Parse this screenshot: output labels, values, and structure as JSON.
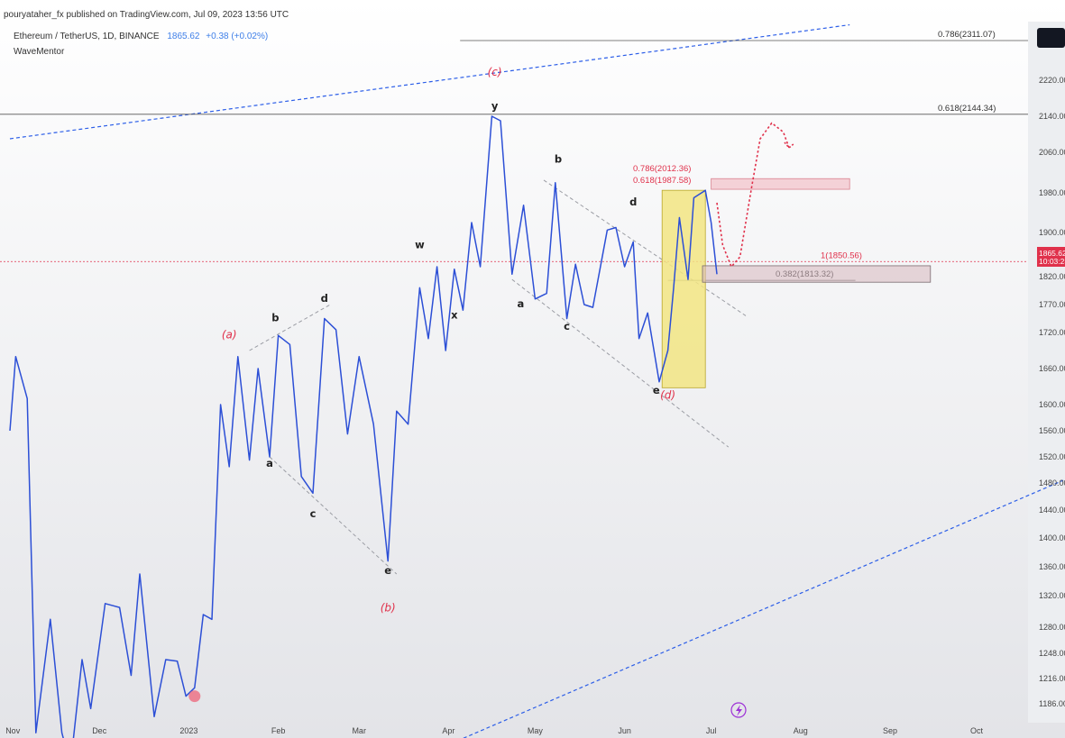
{
  "header": {
    "published": "pouryataher_fx published on TradingView.com, Jul 09, 2023 13:56 UTC",
    "symbol": "Ethereum / TetherUS, 1D, BINANCE",
    "price": "1865.62",
    "change": "+0.38 (+0.02%)",
    "indicator": "WaveMentor"
  },
  "colors": {
    "price_line": "#2c4fd6",
    "wave_red": "#e0314b",
    "channel": "#2c5ee8",
    "highlight": "#f2e583",
    "price_badge": "#e0314b",
    "lightning": "#9c2fd6"
  },
  "icons": {
    "lightning": "lightning-icon"
  },
  "chart_data": {
    "type": "line",
    "title": "Ethereum / TetherUS, 1D, BINANCE",
    "x_axis": {
      "tick_labels": [
        "Nov",
        "Dec",
        "2023",
        "Feb",
        "Mar",
        "Apr",
        "May",
        "Jun",
        "Jul",
        "Aug",
        "Sep",
        "Oct"
      ],
      "tick_dates": [
        "2022-11-01",
        "2022-12-01",
        "2023-01-01",
        "2023-02-01",
        "2023-03-01",
        "2023-04-01",
        "2023-05-01",
        "2023-06-01",
        "2023-07-01",
        "2023-08-01",
        "2023-09-01",
        "2023-10-01"
      ]
    },
    "y_axis": {
      "tick_labels": [
        "2220.00",
        "2140.00",
        "2060.00",
        "1980.00",
        "1900.00",
        "1820.00",
        "1770.00",
        "1720.00",
        "1660.00",
        "1600.00",
        "1560.00",
        "1520.00",
        "1480.00",
        "1440.00",
        "1400.00",
        "1360.00",
        "1320.00",
        "1280.00",
        "1248.00",
        "1216.00",
        "1186.00"
      ],
      "tick_values": [
        2220,
        2140,
        2060,
        1980,
        1900,
        1820,
        1770,
        1720,
        1660,
        1600,
        1560,
        1520,
        1480,
        1440,
        1400,
        1360,
        1320,
        1280,
        1248,
        1216,
        1186
      ],
      "position": "right"
    },
    "price_badge": {
      "price": "1865.62",
      "countdown": "10:03:23"
    },
    "series": [
      {
        "color": "#2c4fd6",
        "points": [
          [
            "2022-10-31",
            1560
          ],
          [
            "2022-11-02",
            1680
          ],
          [
            "2022-11-06",
            1610
          ],
          [
            "2022-11-09",
            1150
          ],
          [
            "2022-11-14",
            1290
          ],
          [
            "2022-11-18",
            1150
          ],
          [
            "2022-11-21",
            1110
          ],
          [
            "2022-11-25",
            1240
          ],
          [
            "2022-11-28",
            1180
          ],
          [
            "2022-12-03",
            1310
          ],
          [
            "2022-12-08",
            1305
          ],
          [
            "2022-12-12",
            1220
          ],
          [
            "2022-12-15",
            1350
          ],
          [
            "2022-12-20",
            1170
          ],
          [
            "2022-12-24",
            1240
          ],
          [
            "2022-12-28",
            1238
          ],
          [
            "2022-12-31",
            1195
          ],
          [
            "2023-01-03",
            1205
          ],
          [
            "2023-01-06",
            1296
          ],
          [
            "2023-01-09",
            1290
          ],
          [
            "2023-01-12",
            1600
          ],
          [
            "2023-01-15",
            1505
          ],
          [
            "2023-01-18",
            1680
          ],
          [
            "2023-01-22",
            1515
          ],
          [
            "2023-01-25",
            1660
          ],
          [
            "2023-01-29",
            1520
          ],
          [
            "2023-02-01",
            1715
          ],
          [
            "2023-02-05",
            1700
          ],
          [
            "2023-02-09",
            1490
          ],
          [
            "2023-02-13",
            1465
          ],
          [
            "2023-02-17",
            1745
          ],
          [
            "2023-02-21",
            1725
          ],
          [
            "2023-02-25",
            1555
          ],
          [
            "2023-03-01",
            1680
          ],
          [
            "2023-03-06",
            1570
          ],
          [
            "2023-03-11",
            1368
          ],
          [
            "2023-03-14",
            1590
          ],
          [
            "2023-03-18",
            1570
          ],
          [
            "2023-03-22",
            1800
          ],
          [
            "2023-03-25",
            1710
          ],
          [
            "2023-03-28",
            1840
          ],
          [
            "2023-03-31",
            1690
          ],
          [
            "2023-04-03",
            1835
          ],
          [
            "2023-04-06",
            1760
          ],
          [
            "2023-04-09",
            1920
          ],
          [
            "2023-04-12",
            1840
          ],
          [
            "2023-04-16",
            2140
          ],
          [
            "2023-04-19",
            2130
          ],
          [
            "2023-04-23",
            1825
          ],
          [
            "2023-04-27",
            1955
          ],
          [
            "2023-05-01",
            1780
          ],
          [
            "2023-05-05",
            1790
          ],
          [
            "2023-05-08",
            2000
          ],
          [
            "2023-05-12",
            1745
          ],
          [
            "2023-05-15",
            1845
          ],
          [
            "2023-05-18",
            1770
          ],
          [
            "2023-05-21",
            1765
          ],
          [
            "2023-05-26",
            1905
          ],
          [
            "2023-05-29",
            1910
          ],
          [
            "2023-06-01",
            1840
          ],
          [
            "2023-06-04",
            1885
          ],
          [
            "2023-06-06",
            1710
          ],
          [
            "2023-06-09",
            1755
          ],
          [
            "2023-06-13",
            1638
          ],
          [
            "2023-06-16",
            1690
          ],
          [
            "2023-06-18",
            1800
          ],
          [
            "2023-06-20",
            1930
          ],
          [
            "2023-06-23",
            1815
          ],
          [
            "2023-06-25",
            1970
          ],
          [
            "2023-06-29",
            1985
          ],
          [
            "2023-07-01",
            1920
          ],
          [
            "2023-07-03",
            1825
          ]
        ]
      }
    ],
    "horizontal_levels": [
      {
        "label": "0.786(2311.07)",
        "value": 2311.07
      },
      {
        "label": "0.618(2144.34)",
        "value": 2144.34
      },
      {
        "label": "1(1850.56)",
        "value": 1850.56
      },
      {
        "label": "0.382(1813.32)",
        "value": 1813.32
      }
    ],
    "red_levels": [
      "0.786(2012.36)",
      "0.618(1987.58)"
    ],
    "wave_labels": [
      {
        "text": "(c)",
        "color": "red",
        "date": "2023-04-17",
        "value": 2230
      },
      {
        "text": "y",
        "date": "2023-04-17",
        "value": 2155
      },
      {
        "text": "b",
        "date": "2023-05-09",
        "value": 2040
      },
      {
        "text": "d",
        "date": "2023-06-04",
        "value": 1955
      },
      {
        "text": "w",
        "date": "2023-03-22",
        "value": 1875
      },
      {
        "text": "d",
        "date": "2023-02-17",
        "value": 1775
      },
      {
        "text": "b",
        "date": "2023-01-31",
        "value": 1740
      },
      {
        "text": "(a)",
        "color": "red",
        "date": "2023-01-15",
        "value": 1710
      },
      {
        "text": "a",
        "date": "2023-01-29",
        "value": 1505
      },
      {
        "text": "c",
        "date": "2023-02-13",
        "value": 1430
      },
      {
        "text": "e",
        "date": "2023-03-11",
        "value": 1350
      },
      {
        "text": "(b)",
        "color": "red",
        "date": "2023-03-11",
        "value": 1300
      },
      {
        "text": "x",
        "date": "2023-04-03",
        "value": 1745
      },
      {
        "text": "a",
        "date": "2023-04-26",
        "value": 1765
      },
      {
        "text": "c",
        "date": "2023-05-12",
        "value": 1725
      },
      {
        "text": "e",
        "date": "2023-06-12",
        "value": 1618
      },
      {
        "text": "(d)",
        "color": "red",
        "date": "2023-06-16",
        "value": 1610
      }
    ],
    "projection_color": "#e0314b"
  }
}
